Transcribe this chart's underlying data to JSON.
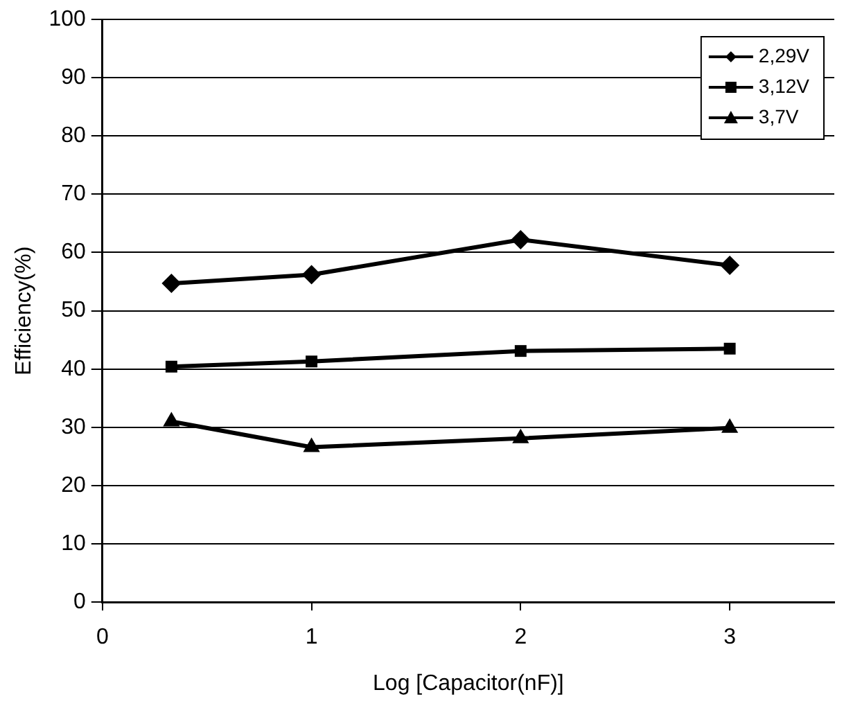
{
  "chart_data": {
    "type": "line",
    "xlabel": "Log [Capacitor(nF)]",
    "ylabel": "Efficiency(%)",
    "x": [
      0.33,
      1,
      2,
      3
    ],
    "series": [
      {
        "name": "2,29V",
        "color": "#000000",
        "marker": "diamond",
        "values": [
          54.7,
          56.2,
          62.2,
          57.8
        ]
      },
      {
        "name": "3,12V",
        "color": "#000000",
        "marker": "square",
        "values": [
          40.4,
          41.3,
          43.1,
          43.5
        ]
      },
      {
        "name": "3,7V",
        "color": "#000000",
        "marker": "triangle",
        "values": [
          31.0,
          26.6,
          28.1,
          29.9
        ]
      }
    ],
    "xlim": [
      0,
      3.5
    ],
    "xticks": [
      0,
      1,
      2,
      3
    ],
    "ylim": [
      0,
      100
    ],
    "yticks": [
      0,
      10,
      20,
      30,
      40,
      50,
      60,
      70,
      80,
      90,
      100
    ],
    "grid": "y",
    "legend": "top right",
    "line_style": "solid"
  }
}
